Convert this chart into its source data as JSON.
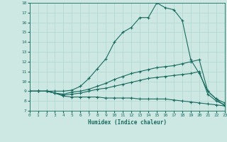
{
  "xlabel": "Humidex (Indice chaleur)",
  "background_color": "#cde8e3",
  "line_color": "#1a6b60",
  "grid_color": "#b0d8d0",
  "xlim": [
    0,
    23
  ],
  "ylim": [
    7,
    18
  ],
  "xticks": [
    0,
    1,
    2,
    3,
    4,
    5,
    6,
    7,
    8,
    9,
    10,
    11,
    12,
    13,
    14,
    15,
    16,
    17,
    18,
    19,
    20,
    21,
    22,
    23
  ],
  "yticks": [
    7,
    8,
    9,
    10,
    11,
    12,
    13,
    14,
    15,
    16,
    17,
    18
  ],
  "lines": [
    {
      "x": [
        0,
        1,
        2,
        3,
        4,
        5,
        6,
        7,
        8,
        9,
        10,
        11,
        12,
        13,
        14,
        15,
        16,
        17,
        18,
        19,
        20,
        21,
        22,
        23
      ],
      "y": [
        9.0,
        9.0,
        9.0,
        9.0,
        9.0,
        9.1,
        9.5,
        10.3,
        11.3,
        12.3,
        14.0,
        15.0,
        15.5,
        16.5,
        16.5,
        18.0,
        17.5,
        17.3,
        16.2,
        12.2,
        10.8,
        9.0,
        8.2,
        7.5
      ]
    },
    {
      "x": [
        0,
        1,
        2,
        3,
        4,
        5,
        6,
        7,
        8,
        9,
        10,
        11,
        12,
        13,
        14,
        15,
        16,
        17,
        18,
        19,
        20,
        21,
        22,
        23
      ],
      "y": [
        9.0,
        9.0,
        9.0,
        8.8,
        8.7,
        8.9,
        9.0,
        9.2,
        9.5,
        9.8,
        10.2,
        10.5,
        10.8,
        11.0,
        11.2,
        11.4,
        11.5,
        11.6,
        11.8,
        12.0,
        12.2,
        9.0,
        8.2,
        7.8
      ]
    },
    {
      "x": [
        0,
        1,
        2,
        3,
        4,
        5,
        6,
        7,
        8,
        9,
        10,
        11,
        12,
        13,
        14,
        15,
        16,
        17,
        18,
        19,
        20,
        21,
        22,
        23
      ],
      "y": [
        9.0,
        9.0,
        9.0,
        8.8,
        8.6,
        8.7,
        8.8,
        9.0,
        9.2,
        9.3,
        9.5,
        9.7,
        9.9,
        10.1,
        10.3,
        10.4,
        10.5,
        10.6,
        10.7,
        10.8,
        11.0,
        8.7,
        8.0,
        7.6
      ]
    },
    {
      "x": [
        0,
        1,
        2,
        3,
        4,
        5,
        6,
        7,
        8,
        9,
        10,
        11,
        12,
        13,
        14,
        15,
        16,
        17,
        18,
        19,
        20,
        21,
        22,
        23
      ],
      "y": [
        9.0,
        9.0,
        9.0,
        8.8,
        8.5,
        8.4,
        8.4,
        8.4,
        8.4,
        8.3,
        8.3,
        8.3,
        8.3,
        8.2,
        8.2,
        8.2,
        8.2,
        8.1,
        8.0,
        7.9,
        7.8,
        7.7,
        7.6,
        7.5
      ]
    }
  ]
}
